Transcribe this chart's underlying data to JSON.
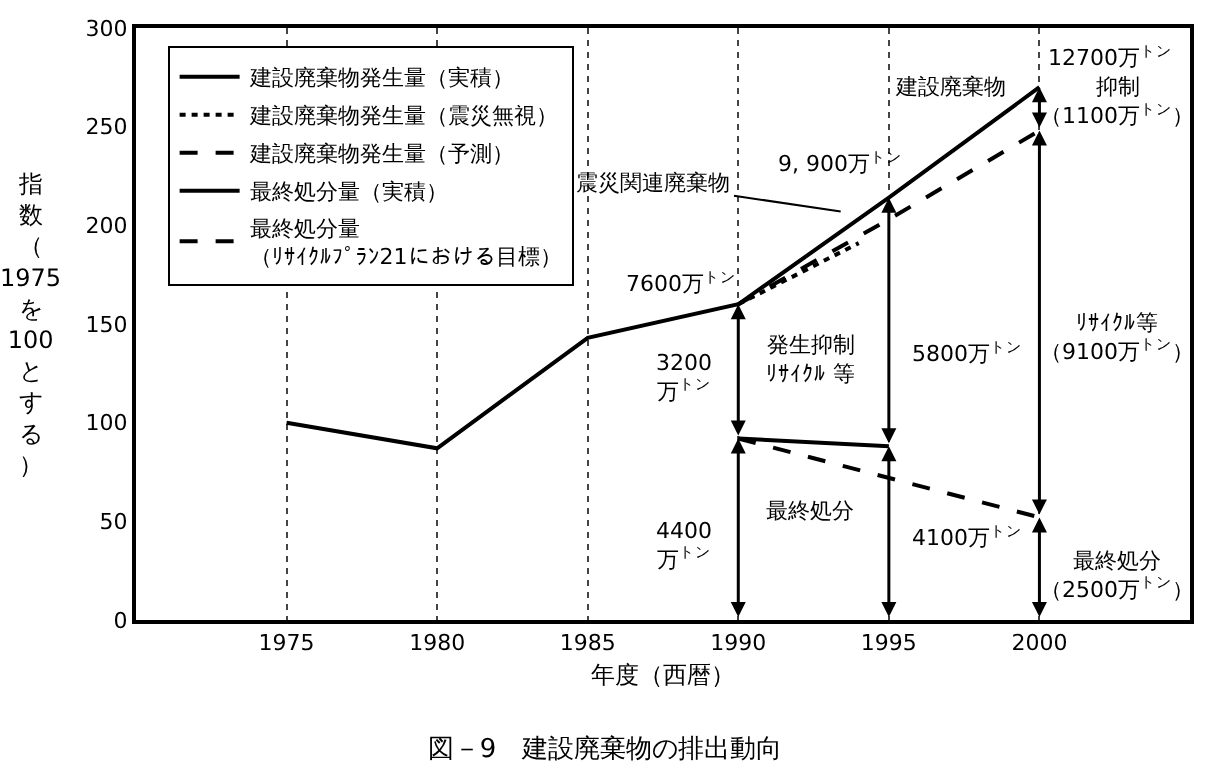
{
  "chart_data": {
    "type": "line",
    "title": "図－9　建設廃棄物の排出動向",
    "xlabel": "年度（西暦）",
    "ylabel": "指数（1975を100とする）",
    "xlim": [
      1970,
      2005
    ],
    "xticks": [
      1975,
      1980,
      1985,
      1990,
      1995,
      2000
    ],
    "ylim": [
      0,
      300
    ],
    "yticks": [
      0,
      50,
      100,
      150,
      200,
      250,
      300
    ],
    "grid": "x",
    "legend": "top left",
    "marker": "none",
    "series": [
      {
        "name": "建設廃棄物発生量（実積）",
        "color": "#000000",
        "line_style": "solid",
        "x": [
          1975,
          1980,
          1985,
          1990,
          1995,
          2000
        ],
        "values": [
          100,
          87,
          143,
          160,
          214,
          270
        ]
      },
      {
        "name": "建設廃棄物発生量（震災無視）",
        "color": "#000000",
        "line_style": "dotted",
        "x": [
          1990,
          1994
        ],
        "values": [
          160,
          191
        ]
      },
      {
        "name": "建設廃棄物発生量（予測）",
        "color": "#000000",
        "line_style": "dashed",
        "x": [
          1990,
          1995,
          2000
        ],
        "values": [
          160,
          203,
          248
        ]
      },
      {
        "name": "最終処分量（実積）",
        "color": "#000000",
        "line_style": "solid",
        "x": [
          1990,
          1995
        ],
        "values": [
          92,
          88
        ]
      },
      {
        "name": "最終処分量（ﾘｻｲｸﾙﾌﾟﾗﾝ21における目標）",
        "color": "#000000",
        "line_style": "dashed",
        "x": [
          1990,
          2000
        ],
        "values": [
          92,
          52
        ]
      }
    ],
    "annotations": [
      "建設廃棄物",
      {
        "text": "12700万$^{トン}$",
        "x": 2000,
        "y": 270
      },
      "抑制",
      "（1100万$^{トン}$）",
      {
        "text": "9, 900万$^{トン}$",
        "x": 1995,
        "y": 214
      },
      "震災関連廃棄物",
      {
        "text": "7600万$^{トン}$",
        "x": 1990,
        "y": 160
      },
      "発生抑制ﾘｻｲｸﾙ 等",
      "3200万$^{トン}$",
      "5800万$^{トン}$",
      "ﾘｻｲｸﾙ等（9100万$^{トン}$）",
      "4400万$^{トン}$",
      "最終処分",
      "4100万$^{トン}$",
      "最終処分（2500万$^{トン}$）"
    ]
  }
}
